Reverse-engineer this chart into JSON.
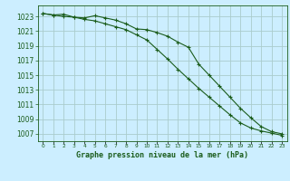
{
  "title": "Graphe pression niveau de la mer (hPa)",
  "background_color": "#cceeff",
  "grid_color": "#aacccc",
  "line_color": "#1a5c1a",
  "x_labels": [
    "0",
    "1",
    "2",
    "3",
    "4",
    "5",
    "6",
    "7",
    "8",
    "9",
    "10",
    "11",
    "12",
    "13",
    "14",
    "15",
    "16",
    "17",
    "18",
    "19",
    "20",
    "21",
    "22",
    "23"
  ],
  "ylim": [
    1006.0,
    1024.5
  ],
  "yticks": [
    1007,
    1009,
    1011,
    1013,
    1015,
    1017,
    1019,
    1021,
    1023
  ],
  "series1": [
    1023.4,
    1023.2,
    1023.3,
    1022.9,
    1022.8,
    1023.1,
    1022.8,
    1022.5,
    1022.0,
    1021.3,
    1021.2,
    1020.8,
    1020.3,
    1019.5,
    1018.8,
    1016.5,
    1015.0,
    1013.5,
    1012.0,
    1010.5,
    1009.2,
    1008.0,
    1007.3,
    1007.0
  ],
  "series2": [
    1023.4,
    1023.2,
    1023.0,
    1022.9,
    1022.6,
    1022.4,
    1022.0,
    1021.6,
    1021.2,
    1020.5,
    1019.8,
    1018.5,
    1017.2,
    1015.8,
    1014.5,
    1013.2,
    1012.0,
    1010.8,
    1009.6,
    1008.5,
    1007.8,
    1007.4,
    1007.1,
    1006.8
  ],
  "figsize": [
    3.2,
    2.0
  ],
  "dpi": 100,
  "label_fontsize": 5.5,
  "xlabel_fontsize": 6.0,
  "ytick_fontsize": 5.5,
  "xtick_fontsize": 4.2
}
